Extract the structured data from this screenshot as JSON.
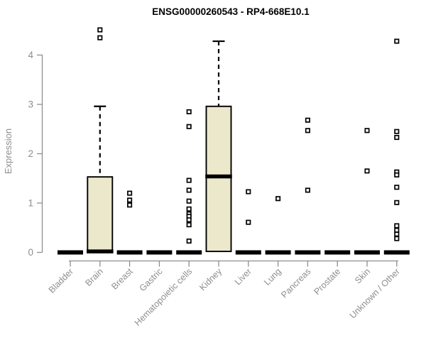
{
  "header": {
    "title": "ENSG00000260543 - RP4-668E10.1"
  },
  "chart_data": {
    "type": "boxplot",
    "title": "ENSG00000260543 - RP4-668E10.1",
    "xlabel": "",
    "ylabel": "Expression",
    "ylim": [
      0,
      4.6
    ],
    "yticks": [
      0,
      1,
      2,
      3,
      4
    ],
    "grid": false,
    "legend": "none",
    "box_fill": "#ece8cc",
    "box_stroke": "#000000",
    "axis_color": "#8e8e8e",
    "categories": [
      "Bladder",
      "Brain",
      "Breast",
      "Gastric",
      "Hematopoietic cells",
      "Kidney",
      "Liver",
      "Lung",
      "Pancreas",
      "Prostate",
      "Skin",
      "Unknown / Other"
    ],
    "boxes": [
      {
        "category": "Bladder",
        "q1": 0,
        "median": 0,
        "q3": 0,
        "whisker_low": 0,
        "whisker_high": 0,
        "outliers": []
      },
      {
        "category": "Brain",
        "q1": 0,
        "median": 0.02,
        "q3": 1.53,
        "whisker_low": 0,
        "whisker_high": 2.96,
        "outliers": [
          4.51,
          4.35
        ]
      },
      {
        "category": "Breast",
        "q1": 0,
        "median": 0,
        "q3": 0,
        "whisker_low": 0,
        "whisker_high": 0,
        "outliers": [
          1.2,
          1.06,
          0.96
        ]
      },
      {
        "category": "Gastric",
        "q1": 0,
        "median": 0,
        "q3": 0,
        "whisker_low": 0,
        "whisker_high": 0,
        "outliers": []
      },
      {
        "category": "Hematopoietic cells",
        "q1": 0,
        "median": 0,
        "q3": 0,
        "whisker_low": 0,
        "whisker_high": 0,
        "outliers": [
          2.85,
          2.55,
          1.46,
          1.26,
          1.04,
          0.88,
          0.78,
          0.73,
          0.66,
          0.56,
          0.23
        ]
      },
      {
        "category": "Kidney",
        "q1": 0.02,
        "median": 1.54,
        "q3": 2.96,
        "whisker_low": 0.02,
        "whisker_high": 4.28,
        "outliers": []
      },
      {
        "category": "Liver",
        "q1": 0,
        "median": 0,
        "q3": 0,
        "whisker_low": 0,
        "whisker_high": 0,
        "outliers": [
          1.23,
          0.61
        ]
      },
      {
        "category": "Lung",
        "q1": 0,
        "median": 0,
        "q3": 0,
        "whisker_low": 0,
        "whisker_high": 0,
        "outliers": [
          1.09
        ]
      },
      {
        "category": "Pancreas",
        "q1": 0,
        "median": 0,
        "q3": 0,
        "whisker_low": 0,
        "whisker_high": 0,
        "outliers": [
          2.68,
          2.47,
          1.26
        ]
      },
      {
        "category": "Prostate",
        "q1": 0,
        "median": 0,
        "q3": 0,
        "whisker_low": 0,
        "whisker_high": 0,
        "outliers": []
      },
      {
        "category": "Skin",
        "q1": 0,
        "median": 0,
        "q3": 0,
        "whisker_low": 0,
        "whisker_high": 0,
        "outliers": [
          2.47,
          1.65
        ]
      },
      {
        "category": "Unknown / Other",
        "q1": 0,
        "median": 0,
        "q3": 0,
        "whisker_low": 0,
        "whisker_high": 0,
        "outliers": [
          4.28,
          2.45,
          2.33,
          1.63,
          1.57,
          1.32,
          1.01,
          0.54,
          0.45,
          0.37,
          0.28
        ]
      }
    ]
  }
}
